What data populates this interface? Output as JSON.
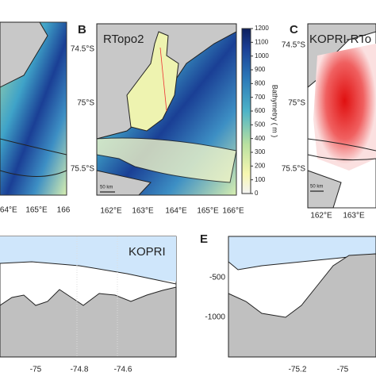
{
  "panels": {
    "a": {
      "lon_labels": [
        "164°E",
        "165°E",
        "166"
      ]
    },
    "b": {
      "label": "B",
      "title": "RTopo2",
      "lat_labels": [
        "74.5°S",
        "75°S",
        "75.5°S"
      ],
      "lon_labels": [
        "162°E",
        "163°E",
        "164°E",
        "165°E",
        "166°E"
      ],
      "scale_label": "50 km",
      "colorbar": {
        "label": "Bathymetry ( m )",
        "lim": [
          0,
          1200
        ],
        "ticks": [
          0,
          100,
          200,
          300,
          400,
          500,
          600,
          700,
          800,
          900,
          1000,
          1100,
          1200
        ]
      }
    },
    "c": {
      "label": "C",
      "title": "KOPRI-RTo",
      "lat_labels": [
        "74.5°S",
        "75°S",
        "75.5°S"
      ],
      "lon_labels": [
        "162°E",
        "163°E"
      ],
      "scale_label": "50 km"
    },
    "d": {
      "title": "KOPRI",
      "x_labels": [
        "-75",
        "-74.8",
        "-74.6"
      ]
    },
    "e": {
      "label": "E",
      "y_labels": [
        "-500",
        "-1000"
      ],
      "x_labels": [
        "-75.2",
        "-75"
      ]
    }
  }
}
